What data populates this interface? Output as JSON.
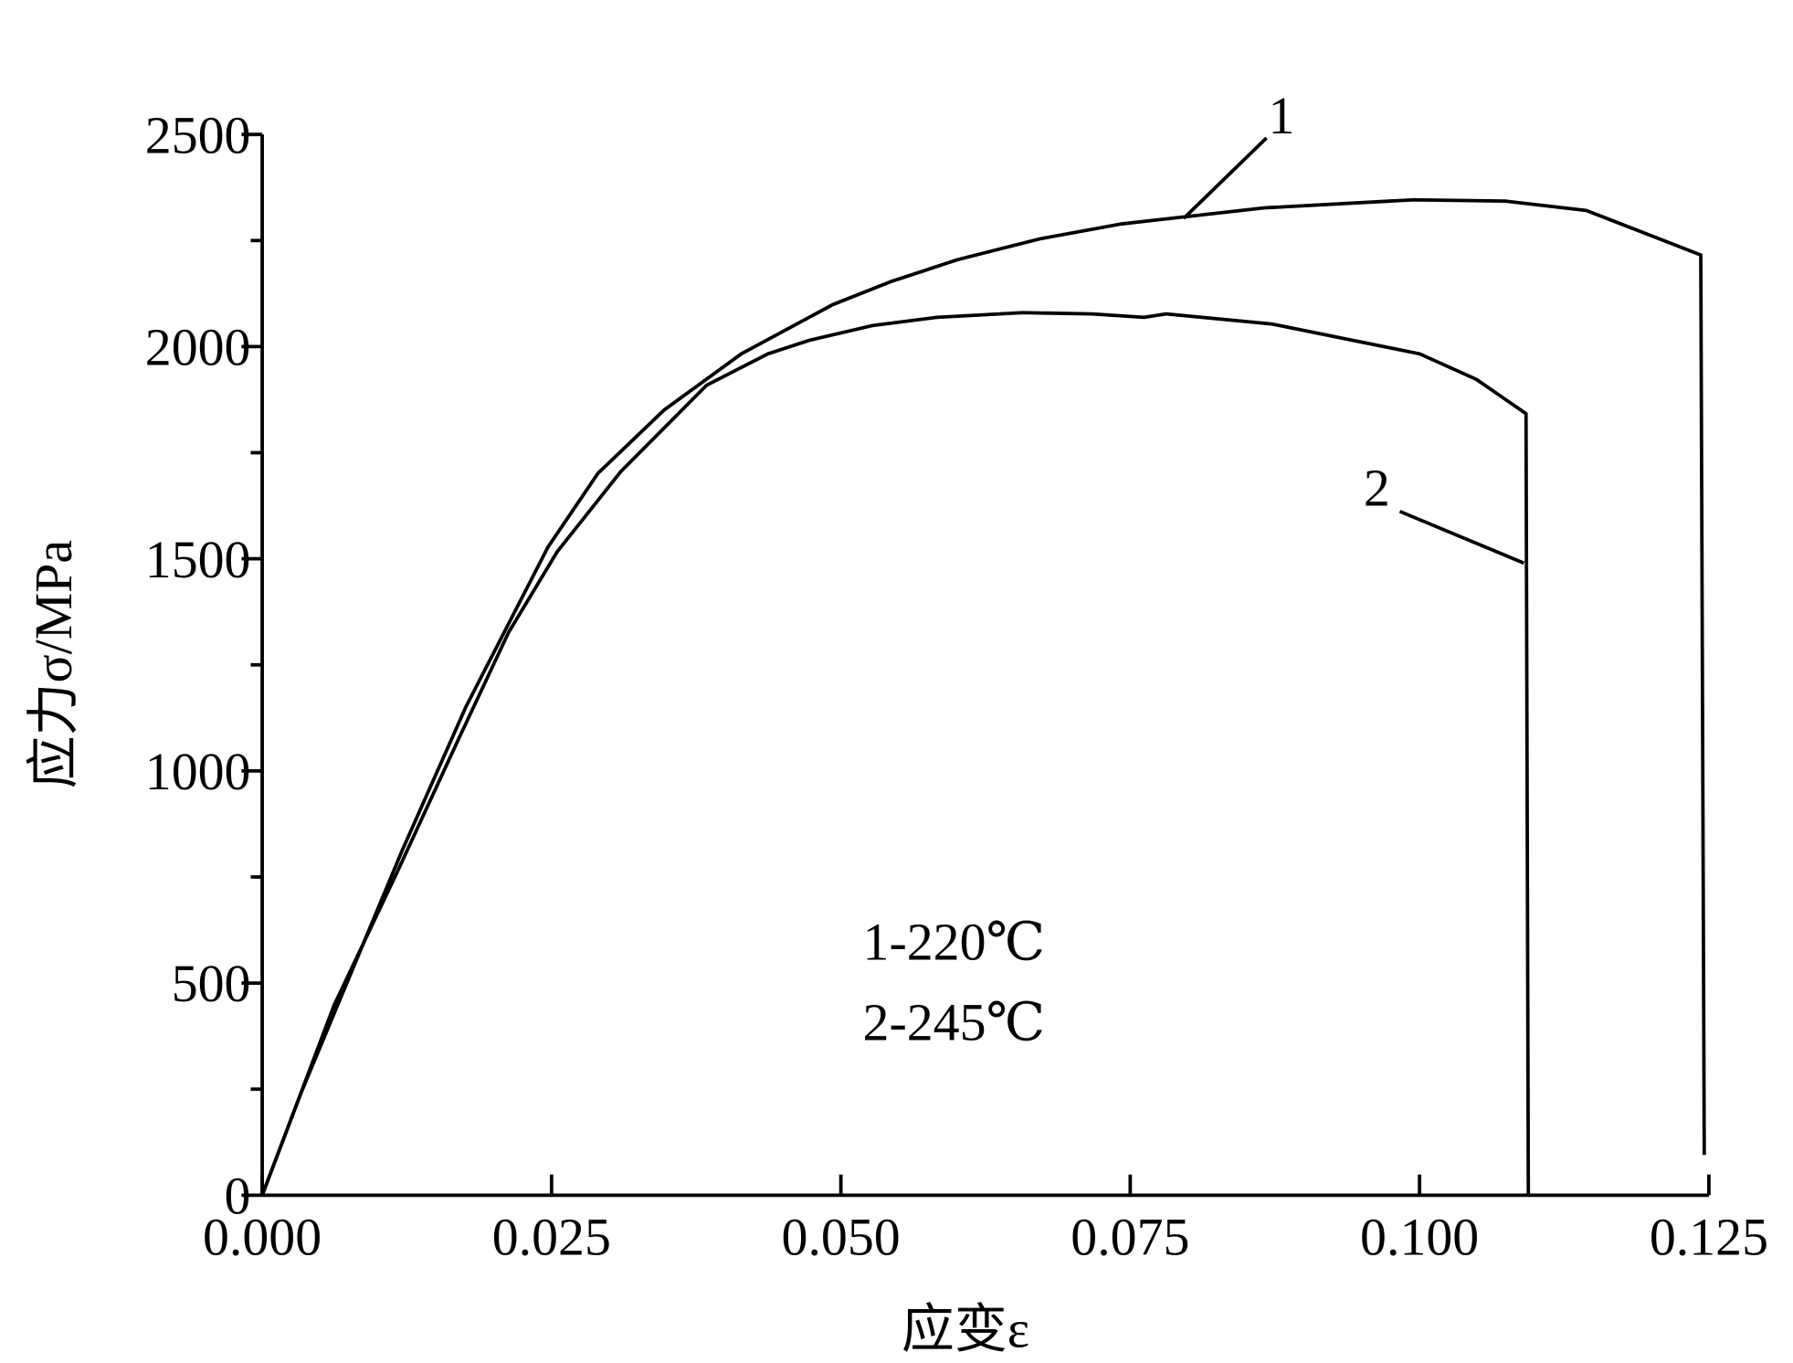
{
  "chart_data": {
    "type": "line",
    "xlabel": "应变ε",
    "ylabel": "应力σ/MPa",
    "xlim": [
      0,
      0.125
    ],
    "ylim": [
      0,
      2500
    ],
    "xticks": [
      {
        "value": 0,
        "label": "0.000"
      },
      {
        "value": 0.025,
        "label": "0.025"
      },
      {
        "value": 0.05,
        "label": "0.050"
      },
      {
        "value": 0.075,
        "label": "0.075"
      },
      {
        "value": 0.1,
        "label": "0.100"
      },
      {
        "value": 0.125,
        "label": "0.125"
      }
    ],
    "yticks": [
      0,
      500,
      1000,
      1500,
      2000,
      2500
    ],
    "yminorticks": [
      250,
      750,
      1250,
      1750,
      2250
    ],
    "series": [
      {
        "name": "1",
        "color": "#000000",
        "x": [
          0,
          0.0034,
          0.0067,
          0.0121,
          0.0176,
          0.0247,
          0.029,
          0.0347,
          0.0414,
          0.0493,
          0.0543,
          0.0601,
          0.0672,
          0.0742,
          0.0866,
          0.0995,
          0.1074,
          0.1144,
          0.1243,
          0.1246
        ],
        "values": [
          0,
          244,
          460,
          813,
          1151,
          1528,
          1701,
          1850,
          1983,
          2099,
          2153,
          2205,
          2254,
          2289,
          2327,
          2346,
          2343,
          2321,
          2216,
          95
        ]
      },
      {
        "name": "2",
        "color": "#000000",
        "x": [
          0,
          0.0062,
          0.0116,
          0.0171,
          0.0213,
          0.0255,
          0.031,
          0.0384,
          0.0437,
          0.0473,
          0.0528,
          0.0583,
          0.0657,
          0.0717,
          0.0762,
          0.0781,
          0.0873,
          0.1,
          0.1049,
          0.1092,
          0.1094
        ],
        "values": [
          0,
          447,
          758,
          1083,
          1327,
          1517,
          1706,
          1909,
          1983,
          2015,
          2050,
          2069,
          2080,
          2077,
          2069,
          2077,
          2053,
          1983,
          1923,
          1842,
          0
        ]
      }
    ],
    "annotations": [
      "1-220℃",
      "2-245℃"
    ]
  }
}
